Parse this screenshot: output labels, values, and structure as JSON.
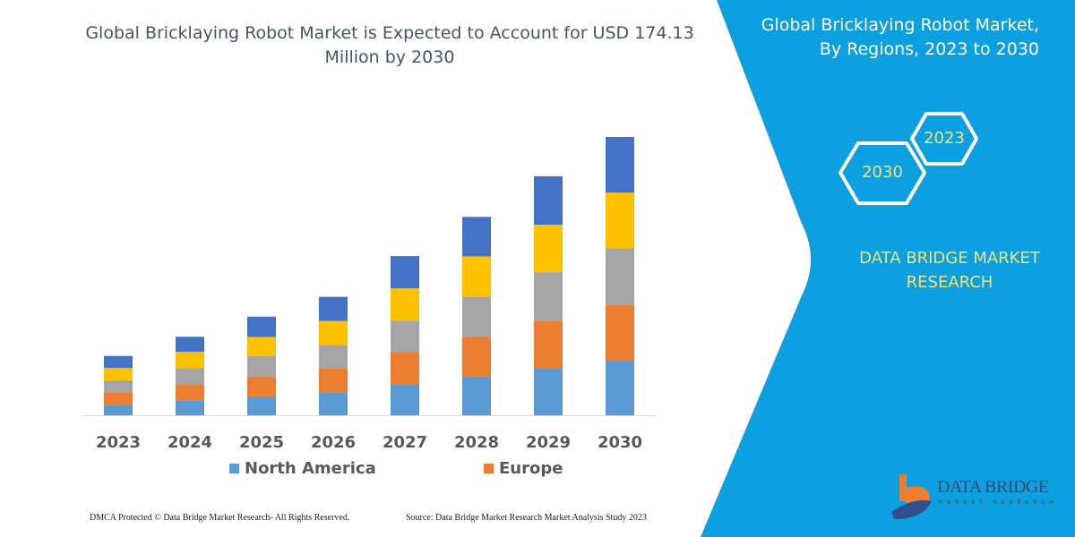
{
  "title": "Global Bricklaying Robot Market is Expected to Account for USD 174.13 Million by 2030",
  "side_panel": {
    "title_line1": "Global Bricklaying Robot Market,",
    "title_line2": "By Regions, 2023 to 2030",
    "hex_start": "2023",
    "hex_end": "2030",
    "brand_line1": "DATA BRIDGE MARKET",
    "brand_line2": "RESEARCH",
    "logo_text": "DATA BRIDGE",
    "logo_subtext": "MARKET RESEARCH",
    "panel_color": "#0ca0e0"
  },
  "footer": {
    "left": "DMCA Protected © Data Bridge Market Research-  All Rights Reserved.",
    "right": "Source: Data Bridge Market Research  Market Analysis Study 2023"
  },
  "chart_data": {
    "type": "bar",
    "stacked": true,
    "title": "Global Bricklaying Robot Market is Expected to Account for USD 174.13 Million by 2030",
    "xlabel": "",
    "ylabel": "",
    "grid": false,
    "legend_position": "bottom",
    "categories": [
      "2023",
      "2024",
      "2025",
      "2026",
      "2027",
      "2028",
      "2029",
      "2030"
    ],
    "series": [
      {
        "name": "North America",
        "color": "#5b9bd5",
        "values": [
          6.5,
          9.4,
          11.8,
          14.4,
          19.5,
          24.3,
          29.6,
          34.4
        ]
      },
      {
        "name": "Europe",
        "color": "#ed7d31",
        "values": [
          7.9,
          10.1,
          12.5,
          15.1,
          20.2,
          24.7,
          29.6,
          34.8
        ]
      },
      {
        "color": "#a5a5a5",
        "values": [
          7.5,
          9.9,
          12.7,
          14.4,
          19.5,
          25.2,
          30.3,
          35.3
        ]
      },
      {
        "color": "#ffc000",
        "values": [
          7.7,
          10.3,
          12.0,
          15.1,
          20.2,
          25.2,
          29.7,
          34.8
        ]
      },
      {
        "color": "#4472c4",
        "values": [
          7.5,
          9.4,
          12.7,
          15.1,
          20.2,
          24.7,
          30.3,
          34.8
        ]
      }
    ]
  }
}
